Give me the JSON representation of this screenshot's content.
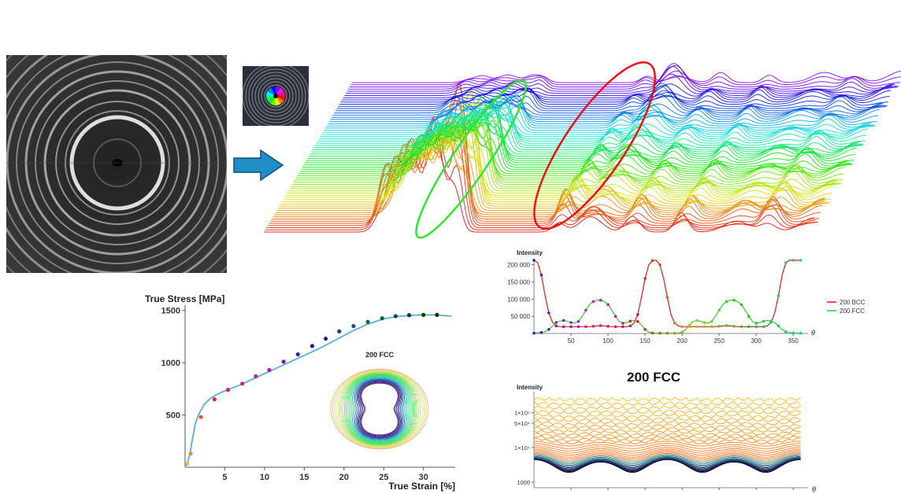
{
  "colors": {
    "accent_arrow": "#1f8fc6",
    "highlight_green": "#2ee62e",
    "highlight_red": "#ee1111",
    "bcc_line": "#e01818",
    "fcc_line": "#39c439",
    "stress_curve": "#6fb1d6"
  },
  "icons": {
    "arrow": "right-arrow-icon"
  },
  "stress_strain": {
    "y_label": "True Stress [MPa]",
    "x_label": "True Strain [%]",
    "inset_label": "200 FCC"
  },
  "bcc_fcc": {
    "y_label": "Intensity",
    "x_symbol": "θ",
    "legend": [
      "200 BCC",
      "200 FCC"
    ]
  },
  "fcc_log": {
    "title": "200 FCC",
    "y_label": "Intensity",
    "x_symbol": "θ"
  },
  "chart_data": [
    {
      "type": "line",
      "ylabel": "True Stress [MPa]",
      "xlabel": "True Strain [%]",
      "xlim": [
        0,
        34
      ],
      "ylim": [
        0,
        1550
      ],
      "xticks": [
        5,
        10,
        15,
        20,
        25,
        30
      ],
      "yticks": [
        500,
        1000,
        1500
      ],
      "curve_x": [
        0,
        0.3,
        0.6,
        0.9,
        1.3,
        1.8,
        2.4,
        3.2,
        4.2,
        5.5,
        7,
        9,
        11,
        13,
        15,
        17,
        19,
        21,
        23,
        25,
        27,
        29,
        31,
        32.5,
        33.5
      ],
      "curve_y": [
        0,
        40,
        130,
        260,
        420,
        520,
        600,
        660,
        705,
        745,
        790,
        860,
        930,
        1000,
        1070,
        1140,
        1220,
        1300,
        1370,
        1420,
        1445,
        1455,
        1458,
        1452,
        1445
      ],
      "marker_x": [
        0.3,
        0.7,
        2.0,
        3.7,
        5.4,
        7.2,
        8.9,
        10.6,
        12.4,
        14.2,
        16.0,
        17.7,
        19.4,
        21.2,
        23.0,
        24.8,
        26.5,
        28.2,
        30.0,
        31.7
      ],
      "marker_y": [
        35,
        130,
        480,
        650,
        740,
        800,
        870,
        930,
        1010,
        1080,
        1160,
        1230,
        1300,
        1350,
        1390,
        1425,
        1445,
        1455,
        1458,
        1458
      ],
      "inset": {
        "label": "200 FCC",
        "type": "polar-line"
      }
    },
    {
      "type": "line",
      "ylabel": "Intensity",
      "xlabel": "θ",
      "xlim": [
        0,
        370
      ],
      "ylim": [
        0,
        215000
      ],
      "xticks": [
        50,
        100,
        150,
        200,
        250,
        300,
        350
      ],
      "yticks": [
        50000,
        100000,
        150000,
        200000
      ],
      "ytick_labels": [
        "50 000",
        "100 000",
        "150 000",
        "200 000"
      ],
      "legend_position": "right",
      "series": [
        {
          "name": "200 BCC",
          "x": [
            0,
            5,
            10,
            15,
            20,
            25,
            30,
            35,
            40,
            45,
            50,
            55,
            60,
            65,
            70,
            75,
            80,
            85,
            90,
            95,
            100,
            105,
            110,
            115,
            120,
            125,
            130,
            135,
            140,
            145,
            150,
            155,
            160,
            165,
            170,
            175,
            180,
            185,
            190,
            195,
            200,
            205,
            210,
            215,
            220,
            225,
            230,
            235,
            240,
            245,
            250,
            255,
            260,
            265,
            270,
            275,
            280,
            285,
            290,
            295,
            300,
            305,
            310,
            315,
            320,
            325,
            330,
            335,
            340,
            345,
            350,
            355,
            360
          ],
          "y": [
            213000,
            206000,
            170000,
            110000,
            60000,
            33000,
            22000,
            20000,
            20000,
            20000,
            20000,
            20000,
            20000,
            20000,
            20000,
            20000,
            21000,
            22000,
            23000,
            22000,
            21000,
            20000,
            20000,
            20000,
            20000,
            20000,
            22000,
            30000,
            55000,
            105000,
            160000,
            200000,
            212000,
            213000,
            200000,
            160000,
            105000,
            55000,
            30000,
            22000,
            20000,
            20000,
            20000,
            20000,
            20000,
            20000,
            20000,
            20000,
            20000,
            20000,
            21000,
            22000,
            23000,
            22000,
            21000,
            20000,
            20000,
            20000,
            20000,
            20000,
            20000,
            20000,
            20000,
            22000,
            33000,
            60000,
            110000,
            170000,
            206000,
            213000,
            213000,
            213000,
            213000
          ]
        },
        {
          "name": "200 FCC",
          "x": [
            0,
            5,
            10,
            15,
            20,
            25,
            30,
            35,
            40,
            45,
            50,
            55,
            60,
            65,
            70,
            75,
            80,
            85,
            90,
            95,
            100,
            105,
            110,
            115,
            120,
            125,
            130,
            135,
            140,
            145,
            150,
            155,
            160,
            165,
            170,
            175,
            180,
            185,
            190,
            195,
            200,
            205,
            210,
            215,
            220,
            225,
            230,
            235,
            240,
            245,
            250,
            255,
            260,
            265,
            270,
            275,
            280,
            285,
            290,
            295,
            300,
            305,
            310,
            315,
            320,
            325,
            330,
            335,
            340,
            345,
            350,
            355,
            360
          ],
          "y": [
            1000,
            2000,
            3000,
            5000,
            12000,
            22000,
            32000,
            36000,
            38000,
            36000,
            32000,
            30000,
            35000,
            50000,
            68000,
            84000,
            93000,
            97000,
            97000,
            93000,
            84000,
            68000,
            50000,
            35000,
            30000,
            32000,
            36000,
            38000,
            35000,
            25000,
            12000,
            4000,
            1500,
            1000,
            1000,
            1000,
            1000,
            1000,
            1000,
            1500,
            4000,
            12000,
            25000,
            35000,
            38000,
            36000,
            32000,
            30000,
            35000,
            50000,
            68000,
            84000,
            93000,
            97000,
            97000,
            93000,
            84000,
            68000,
            50000,
            35000,
            30000,
            32000,
            36000,
            38000,
            36000,
            32000,
            22000,
            12000,
            5000,
            3000,
            2000,
            1000,
            1000
          ]
        }
      ]
    },
    {
      "type": "line",
      "title": "200 FCC",
      "ylabel": "Intensity",
      "xlabel": "θ",
      "yscale": "log",
      "xlim": [
        0,
        370
      ],
      "ylim": [
        700,
        400000
      ],
      "xticks": [
        50,
        100,
        150,
        200,
        250,
        300,
        350
      ],
      "ytick_labels": [
        "1000",
        "1×10⁴",
        "5×10⁴",
        "1×10⁵"
      ],
      "ytick_values": [
        1000,
        10000,
        50000,
        100000
      ],
      "series_count": 32,
      "baseline_range": [
        4500,
        250000
      ],
      "pattern": "four-fold modulation in θ, minima near 90°, 180°, 270°"
    }
  ]
}
